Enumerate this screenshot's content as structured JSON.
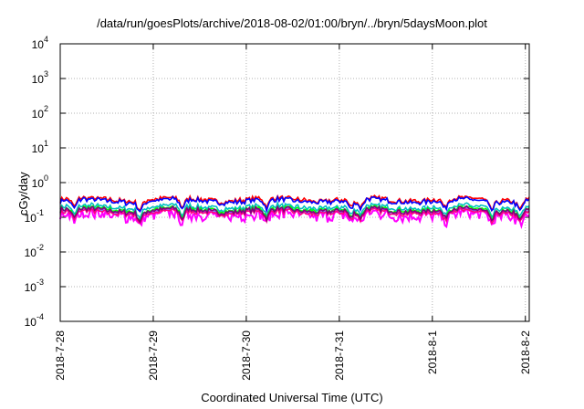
{
  "chart_data": {
    "type": "line",
    "title": "/data/run/goesPlots/archive/2018-08-02/01:00/bryn/../bryn/5daysMoon.plot",
    "xlabel": "Coordinated Universal Time (UTC)",
    "ylabel": "cGy/day",
    "yscale": "log",
    "ylim": [
      0.0001,
      10000
    ],
    "y_ticks": [
      {
        "base": "10",
        "exp": "-4",
        "value": 0.0001
      },
      {
        "base": "10",
        "exp": "-3",
        "value": 0.001
      },
      {
        "base": "10",
        "exp": "-2",
        "value": 0.01
      },
      {
        "base": "10",
        "exp": "-1",
        "value": 0.1
      },
      {
        "base": "10",
        "exp": "0",
        "value": 1
      },
      {
        "base": "10",
        "exp": "1",
        "value": 10
      },
      {
        "base": "10",
        "exp": "2",
        "value": 100
      },
      {
        "base": "10",
        "exp": "3",
        "value": 1000
      },
      {
        "base": "10",
        "exp": "4",
        "value": 10000
      }
    ],
    "xlim": [
      "2018-07-28T00:00",
      "2018-08-02T01:00"
    ],
    "x_ticks": [
      "2018-7-28",
      "2018-7-29",
      "2018-7-30",
      "2018-7-31",
      "2018-8-1",
      "2018-8-2"
    ],
    "grid": true,
    "series": [
      {
        "color": "#ff00ff",
        "level": 0.12
      },
      {
        "color": "#ff0000",
        "level": 0.33
      },
      {
        "color": "#0000ff",
        "level": 0.3
      },
      {
        "color": "#00c0c0",
        "level": 0.2
      },
      {
        "color": "#00ff00",
        "level": 0.17
      },
      {
        "color": "#8080ff",
        "level": 0.15
      },
      {
        "color": "#ff0080",
        "level": 0.14
      },
      {
        "color": "#800080",
        "level": 0.16
      }
    ]
  }
}
